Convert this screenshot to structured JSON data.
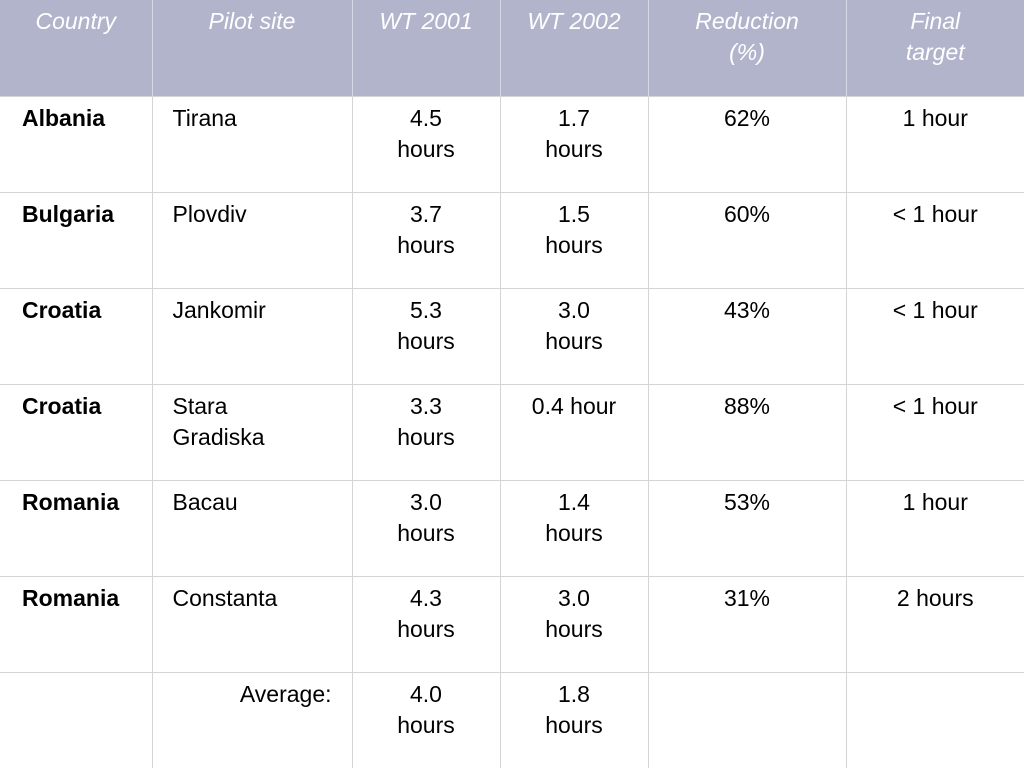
{
  "header": {
    "country": "Country",
    "pilot_site": "Pilot site",
    "wt2001": "WT 2001",
    "wt2002": "WT 2002",
    "reduction_line1": "Reduction",
    "reduction_line2": "(%)",
    "target_line1": "Final",
    "target_line2": "target"
  },
  "rows": [
    {
      "country": "Albania",
      "site_line1": "Tirana",
      "site_line2": "",
      "wt2001_value": "4.5",
      "wt2001_unit": "hours",
      "wt2002_value": "1.7",
      "wt2002_unit": "hours",
      "reduction": "62%",
      "target": "1 hour"
    },
    {
      "country": "Bulgaria",
      "site_line1": "Plovdiv",
      "site_line2": "",
      "wt2001_value": "3.7",
      "wt2001_unit": "hours",
      "wt2002_value": "1.5",
      "wt2002_unit": "hours",
      "reduction": "60%",
      "target": "< 1 hour"
    },
    {
      "country": "Croatia",
      "site_line1": "Jankomir",
      "site_line2": "",
      "wt2001_value": "5.3",
      "wt2001_unit": "hours",
      "wt2002_value": "3.0",
      "wt2002_unit": "hours",
      "reduction": "43%",
      "target": "< 1 hour"
    },
    {
      "country": "Croatia",
      "site_line1": "Stara",
      "site_line2": "Gradiska",
      "wt2001_value": "3.3",
      "wt2001_unit": "hours",
      "wt2002_value": "0.4 hour",
      "wt2002_unit": "",
      "reduction": "88%",
      "target": "< 1 hour"
    },
    {
      "country": "Romania",
      "site_line1": "Bacau",
      "site_line2": "",
      "wt2001_value": "3.0",
      "wt2001_unit": "hours",
      "wt2002_value": "1.4",
      "wt2002_unit": "hours",
      "reduction": "53%",
      "target": "1 hour"
    },
    {
      "country": "Romania",
      "site_line1": "Constanta",
      "site_line2": "",
      "wt2001_value": "4.3",
      "wt2001_unit": "hours",
      "wt2002_value": "3.0",
      "wt2002_unit": "hours",
      "reduction": "31%",
      "target": "2 hours"
    }
  ],
  "average": {
    "label": "Average:",
    "wt2001_value": "4.0",
    "wt2001_unit": "hours",
    "wt2002_value": "1.8",
    "wt2002_unit": "hours"
  }
}
